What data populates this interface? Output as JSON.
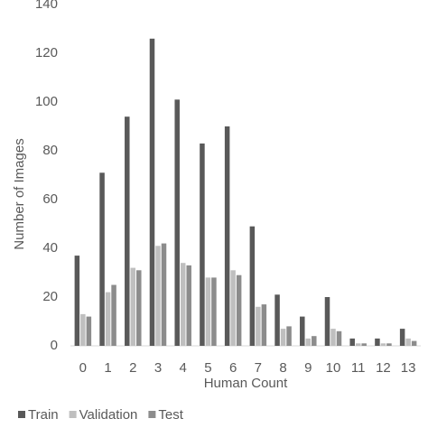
{
  "chart_data": {
    "type": "bar",
    "x_label": "Human Count",
    "y_label": "Number of Images",
    "categories": [
      "0",
      "1",
      "2",
      "3",
      "4",
      "5",
      "6",
      "7",
      "8",
      "9",
      "10",
      "11",
      "12",
      "13"
    ],
    "series": [
      {
        "name": "Train",
        "color": "#595959",
        "values": [
          37,
          71,
          94,
          126,
          101,
          83,
          90,
          49,
          21,
          12,
          20,
          3,
          3,
          7
        ]
      },
      {
        "name": "Validation",
        "color": "#bfbfbf",
        "values": [
          13,
          22,
          32,
          41,
          34,
          28,
          31,
          16,
          7,
          3,
          7,
          1,
          1,
          3
        ]
      },
      {
        "name": "Test",
        "color": "#8c8c8c",
        "values": [
          12,
          25,
          31,
          42,
          33,
          28,
          29,
          17,
          8,
          4,
          6,
          1,
          1,
          2
        ]
      }
    ],
    "ylim": [
      0,
      140
    ],
    "yticks": [
      0,
      20,
      40,
      60,
      80,
      100,
      120,
      140
    ],
    "grid": false,
    "legend": "bottom"
  }
}
